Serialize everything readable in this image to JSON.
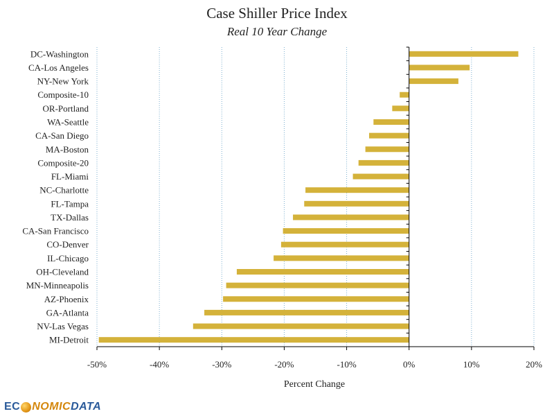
{
  "chart_data": {
    "type": "bar",
    "orientation": "horizontal",
    "title": "Case Shiller Price Index",
    "subtitle": "Real 10 Year Change",
    "xlabel": "Percent Change",
    "ylabel": "",
    "xlim": [
      -50,
      20
    ],
    "ticks": [
      -50,
      -40,
      -30,
      -20,
      -10,
      0,
      10,
      20
    ],
    "tick_labels": [
      "-50%",
      "-40%",
      "-30%",
      "-20%",
      "-10%",
      "0%",
      "10%",
      "20%"
    ],
    "grid": "vertical dotted",
    "bar_color": "#d4b23a",
    "categories": [
      "DC-Washington",
      "CA-Los Angeles",
      "NY-New York",
      "Composite-10",
      "OR-Portland",
      "WA-Seattle",
      "CA-San Diego",
      "MA-Boston",
      "Composite-20",
      "FL-Miami",
      "NC-Charlotte",
      "FL-Tampa",
      "TX-Dallas",
      "CA-San Francisco",
      "CO-Denver",
      "IL-Chicago",
      "OH-Cleveland",
      "MN-Minneapolis",
      "AZ-Phoenix",
      "GA-Atlanta",
      "NV-Las Vegas",
      "MI-Detroit"
    ],
    "values": [
      17.5,
      9.7,
      7.9,
      -1.5,
      -2.7,
      -5.7,
      -6.4,
      -7.0,
      -8.1,
      -9.0,
      -16.6,
      -16.8,
      -18.6,
      -20.2,
      -20.5,
      -21.7,
      -27.6,
      -29.3,
      -29.8,
      -32.8,
      -34.6,
      -49.7
    ]
  },
  "logo": {
    "part1": "EC",
    "part2": "NOMIC",
    "part3": "DATA"
  },
  "colors": {
    "bar": "#d4b23a",
    "grid": "#7aaecf",
    "axis": "#000000",
    "logo_blue": "#2a5a9a",
    "logo_orange": "#d4870d"
  }
}
